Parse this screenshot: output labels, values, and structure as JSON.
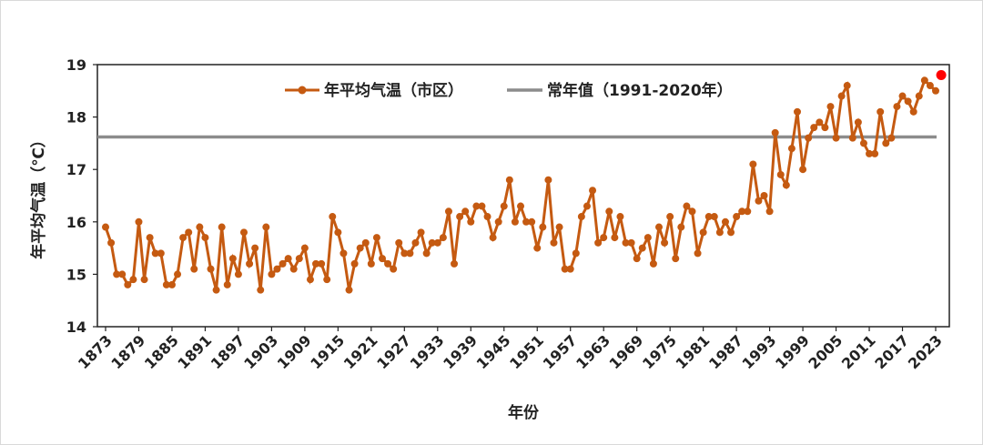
{
  "chart_data": {
    "type": "line",
    "xlabel": "年份",
    "ylabel": "年平均气温（℃）",
    "ylim": [
      14,
      19
    ],
    "yticks": [
      "14",
      "15",
      "16",
      "17",
      "18",
      "19"
    ],
    "xticks": [
      "1873",
      "1879",
      "1885",
      "1891",
      "1897",
      "1903",
      "1909",
      "1915",
      "1921",
      "1927",
      "1933",
      "1939",
      "1945",
      "1951",
      "1957",
      "1963",
      "1969",
      "1975",
      "1981",
      "1987",
      "1993",
      "1999",
      "2005",
      "2011",
      "2017",
      "2023"
    ],
    "grid": false,
    "legend_position": "top",
    "series": [
      {
        "name": "年平均气温（市区）",
        "color": "#C55A11",
        "x_start": 1873,
        "values": [
          15.9,
          15.6,
          15.0,
          15.0,
          14.8,
          14.9,
          16.0,
          14.9,
          15.7,
          15.4,
          15.4,
          14.8,
          14.8,
          15.0,
          15.7,
          15.8,
          15.1,
          15.9,
          15.7,
          15.1,
          14.7,
          15.9,
          14.8,
          15.3,
          15.0,
          15.8,
          15.2,
          15.5,
          14.7,
          15.9,
          15.0,
          15.1,
          15.2,
          15.3,
          15.1,
          15.3,
          15.5,
          14.9,
          15.2,
          15.2,
          14.9,
          16.1,
          15.8,
          15.4,
          14.7,
          15.2,
          15.5,
          15.6,
          15.2,
          15.7,
          15.3,
          15.2,
          15.1,
          15.6,
          15.4,
          15.4,
          15.6,
          15.8,
          15.4,
          15.6,
          15.6,
          15.7,
          16.2,
          15.2,
          16.1,
          16.2,
          16.0,
          16.3,
          16.3,
          16.1,
          15.7,
          16.0,
          16.3,
          16.8,
          16.0,
          16.3,
          16.0,
          16.0,
          15.5,
          15.9,
          16.8,
          15.6,
          15.9,
          15.1,
          15.1,
          15.4,
          16.1,
          16.3,
          16.6,
          15.6,
          15.7,
          16.2,
          15.7,
          16.1,
          15.6,
          15.6,
          15.3,
          15.5,
          15.7,
          15.2,
          15.9,
          15.6,
          16.1,
          15.3,
          15.9,
          16.3,
          16.2,
          15.4,
          15.8,
          16.1,
          16.1,
          15.8,
          16.0,
          15.8,
          16.1,
          16.2,
          16.2,
          17.1,
          16.4,
          16.5,
          16.2,
          17.7,
          16.9,
          16.7,
          17.4,
          18.1,
          17.0,
          17.6,
          17.8,
          17.9,
          17.8,
          18.2,
          17.6,
          18.4,
          18.6,
          17.6,
          17.9,
          17.5,
          17.3,
          17.3,
          18.1,
          17.5,
          17.6,
          18.2,
          18.4,
          18.3,
          18.1,
          18.4,
          18.7,
          18.6,
          18.5
        ]
      },
      {
        "name": "常年值（1991-2020年）",
        "color": "#8C8C8C",
        "value": 17.62
      }
    ],
    "highlight_point": {
      "x": 2024,
      "y": 18.8,
      "color": "#FF0000"
    }
  }
}
